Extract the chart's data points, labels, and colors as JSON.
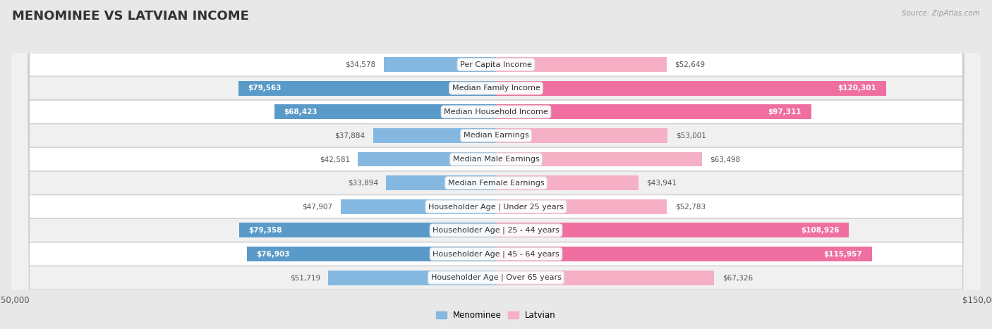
{
  "title": "MENOMINEE VS LATVIAN INCOME",
  "source": "Source: ZipAtlas.com",
  "categories": [
    "Per Capita Income",
    "Median Family Income",
    "Median Household Income",
    "Median Earnings",
    "Median Male Earnings",
    "Median Female Earnings",
    "Householder Age | Under 25 years",
    "Householder Age | 25 - 44 years",
    "Householder Age | 45 - 64 years",
    "Householder Age | Over 65 years"
  ],
  "menominee": [
    34578,
    79563,
    68423,
    37884,
    42581,
    33894,
    47907,
    79358,
    76903,
    51719
  ],
  "latvian": [
    52649,
    120301,
    97311,
    53001,
    63498,
    43941,
    52783,
    108926,
    115957,
    67326
  ],
  "menominee_labels": [
    "$34,578",
    "$79,563",
    "$68,423",
    "$37,884",
    "$42,581",
    "$33,894",
    "$47,907",
    "$79,358",
    "$76,903",
    "$51,719"
  ],
  "latvian_labels": [
    "$52,649",
    "$120,301",
    "$97,311",
    "$53,001",
    "$63,498",
    "$43,941",
    "$52,783",
    "$108,926",
    "$115,957",
    "$67,326"
  ],
  "max_val": 150000,
  "color_menominee": "#85b8e0",
  "color_menominee_strong": "#5a9ac8",
  "color_latvian": "#f5b0c5",
  "color_latvian_strong": "#ee6fa0",
  "bg_color": "#e8e8e8",
  "row_bg_white": "#ffffff",
  "row_bg_light": "#f0f0f0",
  "bar_height": 0.62,
  "title_fontsize": 13,
  "cat_fontsize": 8,
  "val_fontsize": 7.5,
  "tick_fontsize": 8.5,
  "legend_fontsize": 8.5
}
